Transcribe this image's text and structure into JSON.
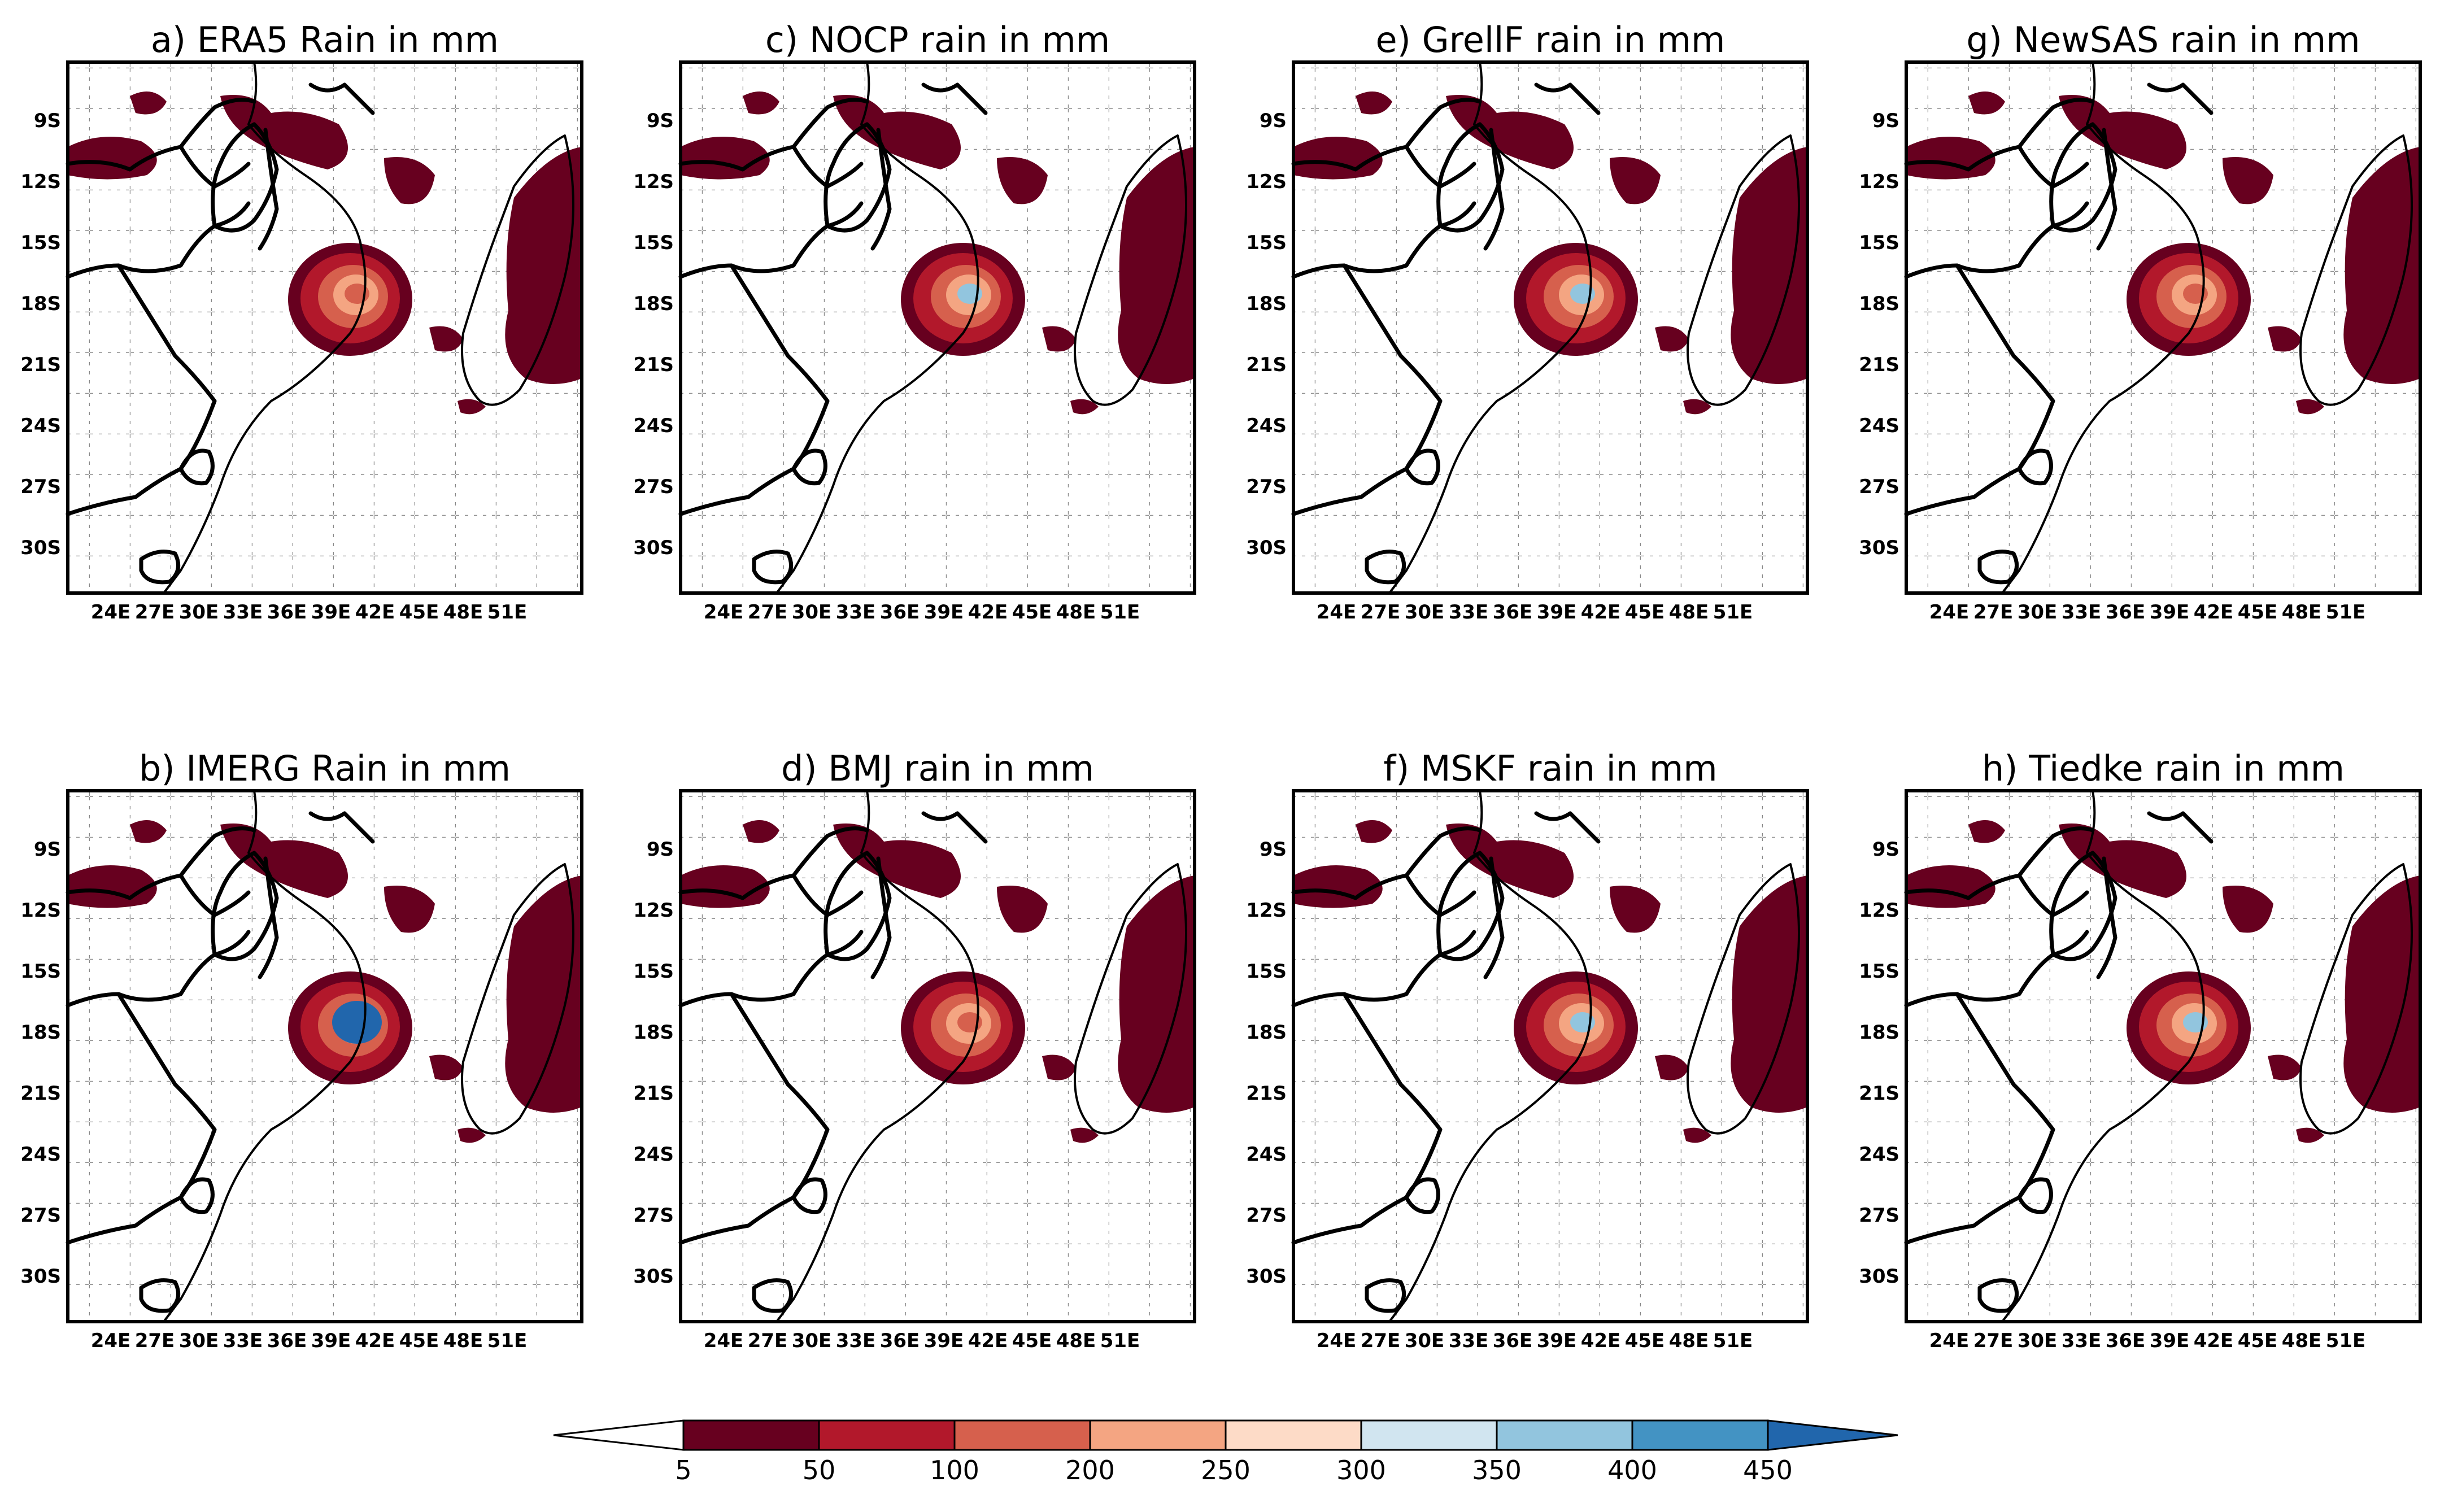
{
  "figure": {
    "panels": [
      {
        "id": "a",
        "title": "a) ERA5 Rain in mm",
        "core": "none"
      },
      {
        "id": "c",
        "title": "c) NOCP rain in mm",
        "core": "light"
      },
      {
        "id": "e",
        "title": "e) GrellF rain in mm",
        "core": "light"
      },
      {
        "id": "g",
        "title": "g) NewSAS rain in mm",
        "core": "none"
      },
      {
        "id": "b",
        "title": "b) IMERG Rain in mm",
        "core": "blue"
      },
      {
        "id": "d",
        "title": "d) BMJ rain in mm",
        "core": "none"
      },
      {
        "id": "f",
        "title": "f) MSKF rain in mm",
        "core": "light"
      },
      {
        "id": "h",
        "title": "h) Tiedke rain in mm",
        "core": "light"
      }
    ],
    "lat_labels": [
      "9S",
      "12S",
      "15S",
      "18S",
      "21S",
      "24S",
      "27S",
      "30S"
    ],
    "lon_labels": [
      "24E",
      "27E",
      "30E",
      "33E",
      "36E",
      "39E",
      "42E",
      "45E",
      "48E",
      "51E"
    ],
    "colorbar": {
      "labels": [
        "5",
        "50",
        "100",
        "200",
        "250",
        "300",
        "350",
        "400",
        "450"
      ],
      "colors": [
        "#ffffff",
        "#67001f",
        "#b2182b",
        "#d6604d",
        "#f4a582",
        "#fddbc7",
        "#d1e5f0",
        "#92c5de",
        "#4393c3",
        "#2166ac"
      ]
    }
  }
}
